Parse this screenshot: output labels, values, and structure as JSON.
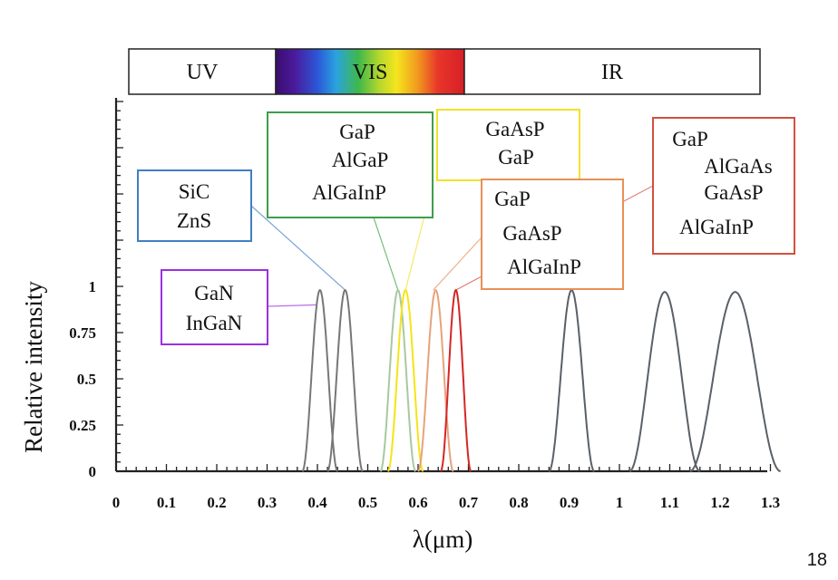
{
  "page_number": "18",
  "chart_data": {
    "type": "line",
    "xlabel": "λ(μm)",
    "ylabel": "Relative  intensity",
    "xlim": [
      0,
      1.3
    ],
    "ylim": [
      0,
      2.0
    ],
    "x_ticks": [
      "0",
      "0.1",
      "0.2",
      "0.3",
      "0.4",
      "0.5",
      "0.6",
      "0.7",
      "0.8",
      "0.9",
      "1",
      "1.1",
      "1.2",
      "1.3"
    ],
    "y_ticks": [
      "0",
      "0.25",
      "0.5",
      "0.75",
      "1"
    ],
    "spectrum_bands": [
      {
        "name": "UV",
        "from": 0.0,
        "to": 0.32
      },
      {
        "name": "VIS",
        "from": 0.32,
        "to": 0.7
      },
      {
        "name": "IR",
        "from": 0.7,
        "to": 1.3
      }
    ],
    "series": [
      {
        "name": "GaN/InGaN",
        "peak": 0.405,
        "halfwidth": 0.035,
        "amplitude": 0.98,
        "color": "#777777"
      },
      {
        "name": "SiC/ZnS",
        "peak": 0.455,
        "halfwidth": 0.035,
        "amplitude": 0.98,
        "color": "#777777"
      },
      {
        "name": "GaP/AlGaP/AlGaInP green",
        "peak": 0.56,
        "halfwidth": 0.035,
        "amplitude": 0.98,
        "color": "#a9c8a0"
      },
      {
        "name": "GaAsP/GaP yellow",
        "peak": 0.575,
        "halfwidth": 0.035,
        "amplitude": 0.98,
        "color": "#f5e416"
      },
      {
        "name": "GaP/GaAsP/AlGaInP orange",
        "peak": 0.635,
        "halfwidth": 0.035,
        "amplitude": 0.98,
        "color": "#e8a27b"
      },
      {
        "name": "GaP/AlGaAs/GaAsP/AlGaInP red",
        "peak": 0.675,
        "halfwidth": 0.03,
        "amplitude": 0.98,
        "color": "#d42626"
      },
      {
        "name": "IR 0.9",
        "peak": 0.905,
        "halfwidth": 0.045,
        "amplitude": 0.98,
        "color": "#5a6068"
      },
      {
        "name": "IR 1.09",
        "peak": 1.09,
        "halfwidth": 0.07,
        "amplitude": 0.97,
        "color": "#5a6068"
      },
      {
        "name": "IR 1.23",
        "peak": 1.23,
        "halfwidth": 0.09,
        "amplitude": 0.97,
        "color": "#5a6068"
      }
    ],
    "annotations": [
      {
        "id": "ann-gan",
        "lines": [
          "GaN",
          "InGaN"
        ],
        "border": "#9b30e0",
        "target": [
          0.4,
          0.9
        ]
      },
      {
        "id": "ann-sic",
        "lines": [
          "SiC",
          "ZnS"
        ],
        "border": "#3f7fc4",
        "target": [
          0.455,
          0.98
        ]
      },
      {
        "id": "ann-green",
        "lines": [
          "GaP",
          "AlGaP",
          "AlGaInP"
        ],
        "border": "#3e9e4a",
        "target": [
          0.56,
          0.98
        ]
      },
      {
        "id": "ann-yellow",
        "lines": [
          "GaAsP",
          "GaP"
        ],
        "border": "#f0e22a",
        "target": [
          0.575,
          0.98
        ]
      },
      {
        "id": "ann-orange",
        "lines": [
          "GaP",
          "GaAsP",
          "AlGaInP"
        ],
        "border": "#e89058",
        "target": [
          0.63,
          0.98
        ]
      },
      {
        "id": "ann-red",
        "lines": [
          "GaP",
          "AlGaAs",
          "GaAsP",
          "AlGaInP"
        ],
        "border": "#d2503e",
        "target": [
          0.675,
          0.98
        ]
      }
    ]
  }
}
